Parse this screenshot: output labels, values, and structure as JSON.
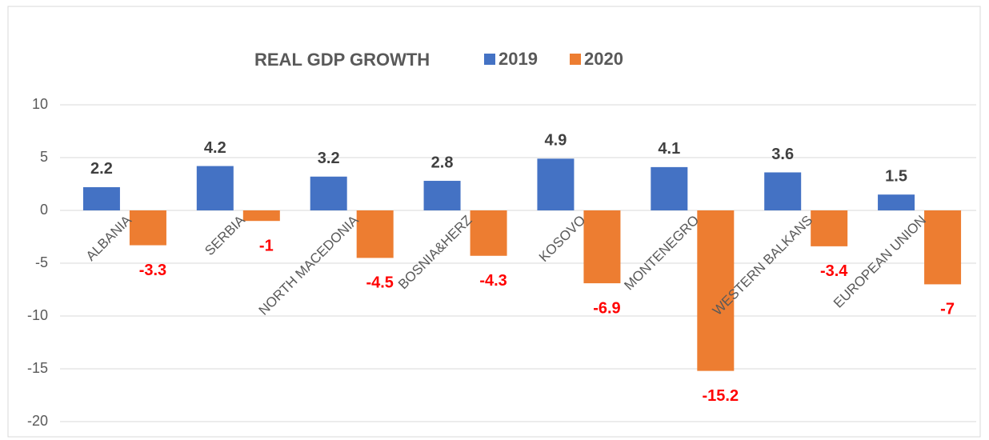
{
  "chart_data": {
    "type": "bar",
    "title": "REAL GDP GROWTH",
    "categories": [
      "ALBANIA",
      "SERBIA",
      "NORTH MACEDONIA",
      "BOSNIA&HERZ",
      "KOSOVO",
      "MONTENEGRO",
      "WESTERN BALKANS",
      "EUROPEAN UNION"
    ],
    "series": [
      {
        "name": "2019",
        "color": "#4472c4",
        "values": [
          2.2,
          4.2,
          3.2,
          2.8,
          4.9,
          4.1,
          3.6,
          1.5
        ]
      },
      {
        "name": "2020",
        "color": "#ed7d31",
        "values": [
          -3.3,
          -1,
          -4.5,
          -4.3,
          -6.9,
          -15.2,
          -3.4,
          -7
        ]
      }
    ],
    "ylim": [
      -20,
      10
    ],
    "yticks": [
      -20,
      -15,
      -10,
      -5,
      0,
      5,
      10
    ],
    "grid": true
  }
}
